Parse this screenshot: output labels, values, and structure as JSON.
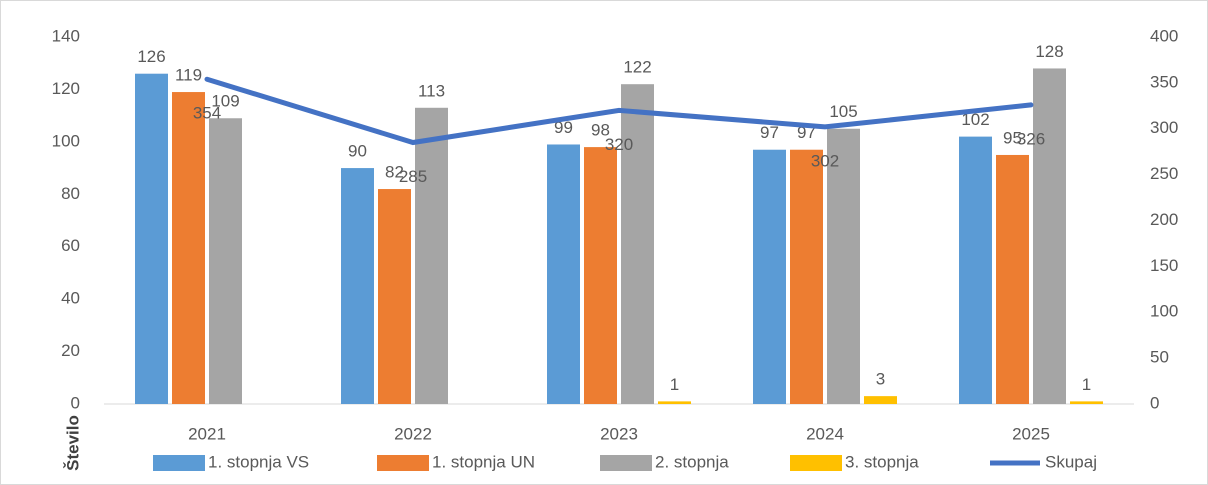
{
  "chart_data": {
    "type": "bar-line",
    "y_axis_label": "Število",
    "categories": [
      "2021",
      "2022",
      "2023",
      "2024",
      "2025"
    ],
    "series": [
      {
        "name": "1. stopnja VS",
        "color": "#5b9bd5",
        "type": "bar",
        "values": [
          126,
          90,
          99,
          97,
          102
        ]
      },
      {
        "name": "1. stopnja UN",
        "color": "#ed7d31",
        "type": "bar",
        "values": [
          119,
          82,
          98,
          97,
          95
        ]
      },
      {
        "name": "2. stopnja",
        "color": "#a5a5a5",
        "type": "bar",
        "values": [
          109,
          113,
          122,
          105,
          128
        ]
      },
      {
        "name": "3. stopnja",
        "color": "#ffc000",
        "type": "bar",
        "values": [
          null,
          null,
          1,
          3,
          1
        ]
      },
      {
        "name": "Skupaj",
        "color": "#4472c4",
        "type": "line",
        "axis": "y2",
        "values": [
          354,
          285,
          320,
          302,
          326
        ]
      }
    ],
    "ylim": [
      0,
      140
    ],
    "yticks": [
      0,
      20,
      40,
      60,
      80,
      100,
      120,
      140
    ],
    "y2lim": [
      0,
      400
    ],
    "y2ticks": [
      0,
      50,
      100,
      150,
      200,
      250,
      300,
      350,
      400
    ],
    "grid": false,
    "legend": "bottom"
  }
}
